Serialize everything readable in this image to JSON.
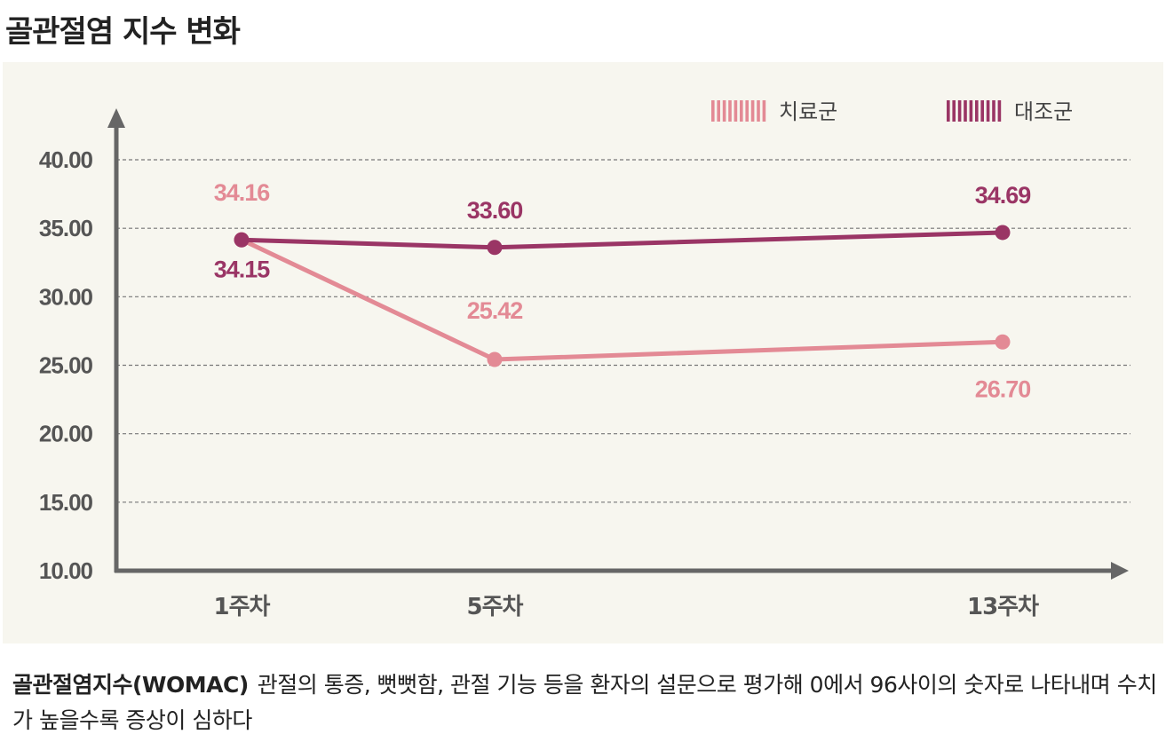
{
  "title": "골관절염 지수 변화",
  "chart_data": {
    "type": "line",
    "categories": [
      "1주차",
      "5주차",
      "13주차"
    ],
    "ylim": [
      10,
      40
    ],
    "yticks": [
      "10.00",
      "15.00",
      "20.00",
      "25.00",
      "30.00",
      "35.00",
      "40.00"
    ],
    "grid": true,
    "legend": "top-right",
    "series": [
      {
        "name": "치료군",
        "values": [
          34.16,
          25.42,
          26.7
        ],
        "labels": [
          "34.16",
          "25.42",
          "26.70"
        ],
        "color": "#e38a95"
      },
      {
        "name": "대조군",
        "values": [
          34.15,
          33.6,
          34.69
        ],
        "labels": [
          "34.15",
          "33.60",
          "34.69"
        ],
        "color": "#9a3565"
      }
    ]
  },
  "caption": {
    "term": "골관절염지수(WOMAC)",
    "text": "관절의 통증, 뻣뻣함, 관절 기능 등을 환자의 설문으로 평가해 0에서 96사이의 숫자로 나타내며 수치가 높을수록 증상이 심하다"
  }
}
